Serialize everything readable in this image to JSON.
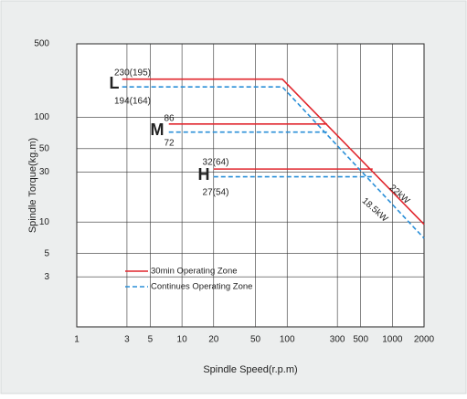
{
  "chart_data": {
    "type": "line",
    "y_label": "Spindle Torque(kg.m)",
    "x_label": "Spindle Speed(r.p.m)",
    "log_x": true,
    "log_y": true,
    "grid": true,
    "legend": "lower left",
    "xlim": [
      1,
      2000
    ],
    "xticks": [
      1,
      3,
      5,
      10,
      20,
      50,
      100,
      300,
      500,
      1000,
      2000
    ],
    "ylim": [
      1,
      500
    ],
    "yticks": [
      3,
      5,
      10,
      30,
      50,
      100,
      500
    ],
    "series": [
      {
        "name": "30min Operating Zone",
        "color": "#e1262d",
        "dashed": false,
        "x": [
          2.7,
          90,
          2000,
          null,
          7.5,
          240,
          null,
          20,
          650
        ],
        "values": [
          230,
          230,
          9.5,
          null,
          86,
          86,
          null,
          32,
          32
        ]
      },
      {
        "name": "Continues Operating Zone",
        "color": "#2a8fd8",
        "dashed": true,
        "x": [
          2.7,
          90,
          2000,
          null,
          7.5,
          240,
          null,
          20,
          640
        ],
        "values": [
          194,
          194,
          7,
          null,
          72,
          72,
          null,
          27,
          27
        ]
      }
    ],
    "annotations": [
      "L",
      "M",
      "H",
      "230(195)",
      "194(164)",
      "86",
      "72",
      "32(64)",
      "27(54)",
      "22kW",
      "18.5kW"
    ]
  }
}
